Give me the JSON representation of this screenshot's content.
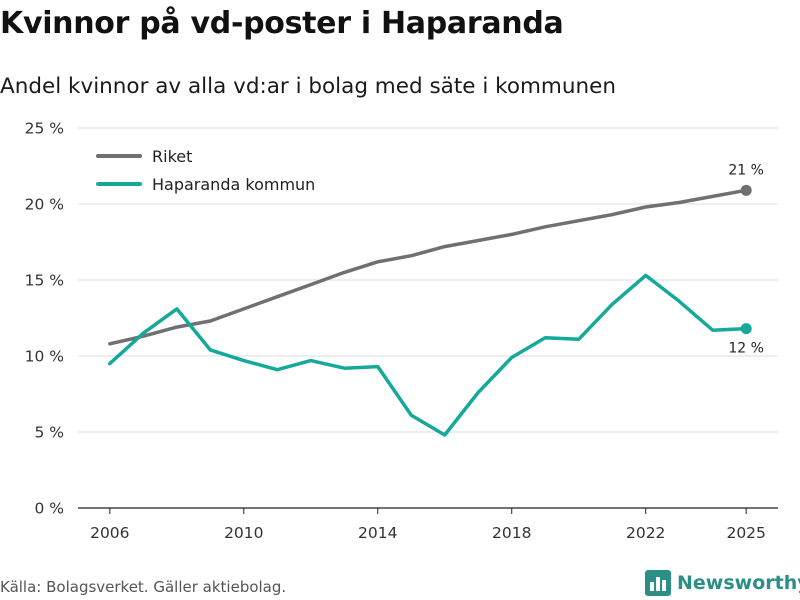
{
  "header": {
    "title": "Kvinnor på vd-poster i Haparanda",
    "subtitle": "Andel kvinnor av alla vd:ar i bolag med säte i kommunen"
  },
  "footer": {
    "source": "Källa: Bolagsverket. Gäller aktiebolag.",
    "brand": "Newsworthy",
    "brand_icon": "bar-chart-logo-icon"
  },
  "chart_data": {
    "type": "line",
    "title": "Kvinnor på vd-poster i Haparanda",
    "subtitle": "Andel kvinnor av alla vd:ar i bolag med säte i kommunen",
    "xlabel": "",
    "ylabel": "",
    "x": [
      2006,
      2007,
      2008,
      2009,
      2010,
      2011,
      2012,
      2013,
      2014,
      2015,
      2016,
      2017,
      2018,
      2019,
      2020,
      2021,
      2022,
      2023,
      2024,
      2025
    ],
    "xticks": [
      2006,
      2010,
      2014,
      2018,
      2022,
      2025
    ],
    "ylim": [
      0,
      25
    ],
    "yticks": [
      0,
      5,
      10,
      15,
      20,
      25
    ],
    "ytick_labels": [
      "0 %",
      "5 %",
      "10 %",
      "15 %",
      "20 %",
      "25 %"
    ],
    "grid": true,
    "legend_position": "top-left",
    "series": [
      {
        "name": "Riket",
        "color": "#6f6f74",
        "values": [
          10.8,
          11.3,
          11.9,
          12.3,
          13.1,
          13.9,
          14.7,
          15.5,
          16.2,
          16.6,
          17.2,
          17.6,
          18.0,
          18.5,
          18.9,
          19.3,
          19.8,
          20.1,
          20.5,
          20.9
        ],
        "end_label": "21 %"
      },
      {
        "name": "Haparanda kommun",
        "color": "#14a99a",
        "values": [
          9.5,
          11.5,
          13.1,
          10.4,
          9.7,
          9.1,
          9.7,
          9.2,
          9.3,
          6.1,
          4.8,
          7.6,
          9.9,
          11.2,
          11.1,
          13.4,
          15.3,
          13.6,
          11.7,
          11.8
        ],
        "end_label": "12 %"
      }
    ]
  }
}
